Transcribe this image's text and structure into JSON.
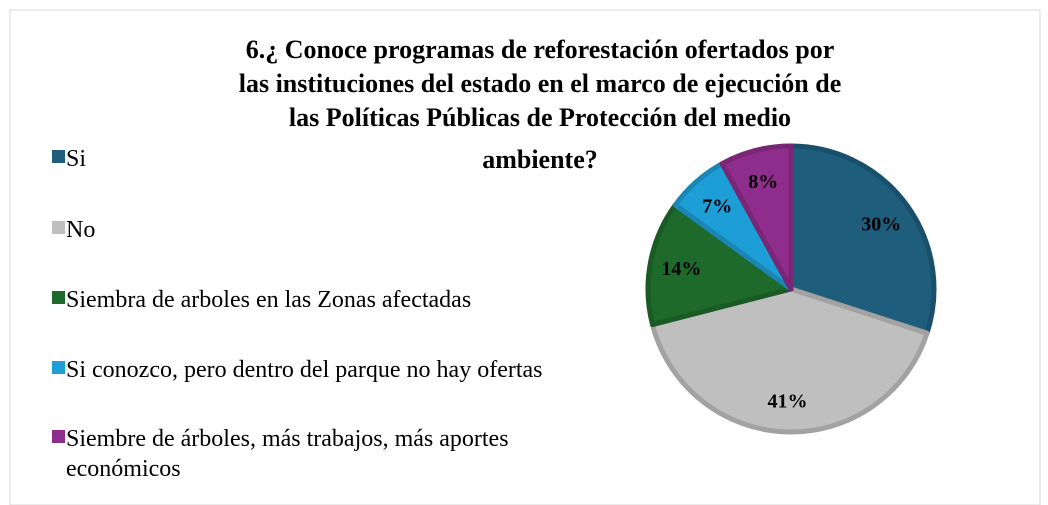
{
  "chart_data": {
    "type": "pie",
    "title": [
      "6.¿ Conoce programas de reforestación ofertados por",
      "las instituciones del estado en el marco de ejecución de",
      "las Políticas Públicas de Protección  del medio",
      "ambiente?"
    ],
    "categories": [
      "Si",
      "No",
      "Siembra de arboles en las Zonas afectadas",
      "Si conozco, pero dentro del parque no hay ofertas",
      "Siembre de árboles, más trabajos, más aportes económicos"
    ],
    "values": [
      30,
      41,
      14,
      7,
      8
    ],
    "value_labels": [
      "30%",
      "41%",
      "14%",
      "7%",
      "8%"
    ],
    "colors": [
      "#1f5d7d",
      "#bfbfbf",
      "#1e6a2b",
      "#1e9ed6",
      "#8e2d8b"
    ],
    "legend": "left"
  }
}
